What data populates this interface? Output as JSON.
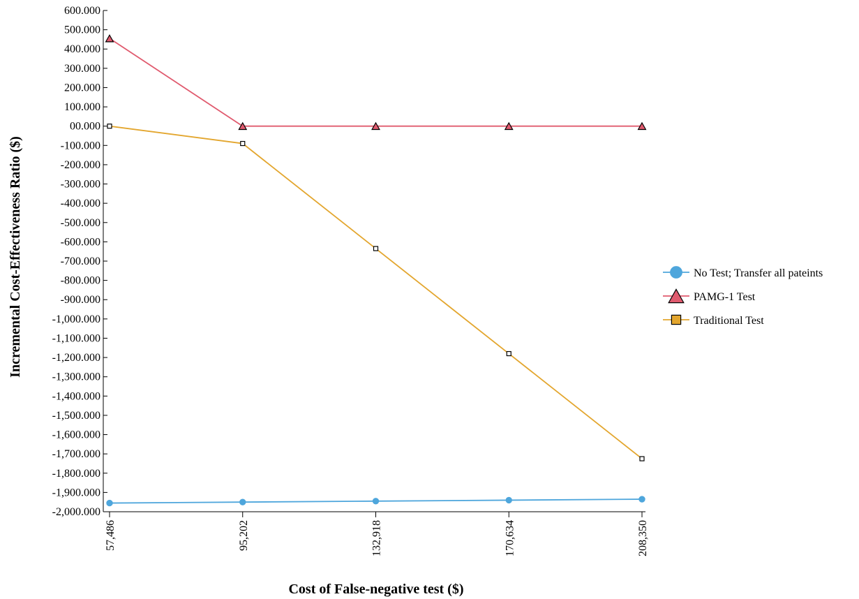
{
  "chart_data": {
    "type": "line",
    "xlabel": "Cost of False-negative test ($)",
    "ylabel": "Incremental Cost-Effectiveness Ratio ($)",
    "categories": [
      "57,486",
      "95,202",
      "132,918",
      "170,634",
      "208,350"
    ],
    "x": [
      57486,
      95202,
      132918,
      170634,
      208350
    ],
    "ylim": [
      -2000,
      600
    ],
    "yticks": [
      600,
      500,
      400,
      300,
      200,
      100,
      0,
      -100,
      -200,
      -300,
      -400,
      -500,
      -600,
      -700,
      -800,
      -900,
      -1000,
      -1100,
      -1200,
      -1300,
      -1400,
      -1500,
      -1600,
      -1700,
      -1800,
      -1900,
      -2000
    ],
    "ytick_labels": [
      "600.000",
      "500.000",
      "400.000",
      "300.000",
      "200.000",
      "100.000",
      "00.000",
      "-100.000",
      "-200.000",
      "-300.000",
      "-400.000",
      "-500.000",
      "-600.000",
      "-700.000",
      "-800.000",
      "-900.000",
      "-1,000.000",
      "-1,100.000",
      "-1,200.000",
      "-1,300.000",
      "-1,400.000",
      "-1,500.000",
      "-1,600.000",
      "-1,700.000",
      "-1,800.000",
      "-1,900.000",
      "-2,000.000"
    ],
    "grid": false,
    "legend_position": "right",
    "series": [
      {
        "name": "No Test; Transfer all pateints",
        "color": "#4ea6dc",
        "marker": "circle",
        "values": [
          -1955,
          -1950,
          -1945,
          -1940,
          -1935
        ]
      },
      {
        "name": "PAMG-1 Test",
        "color": "#e05a6e",
        "marker": "triangle",
        "values": [
          455,
          0,
          0,
          0,
          0
        ]
      },
      {
        "name": "Traditional Test",
        "color": "#e3a62e",
        "marker": "square",
        "values": [
          0,
          -90,
          -635,
          -1180,
          -1725
        ]
      }
    ]
  }
}
